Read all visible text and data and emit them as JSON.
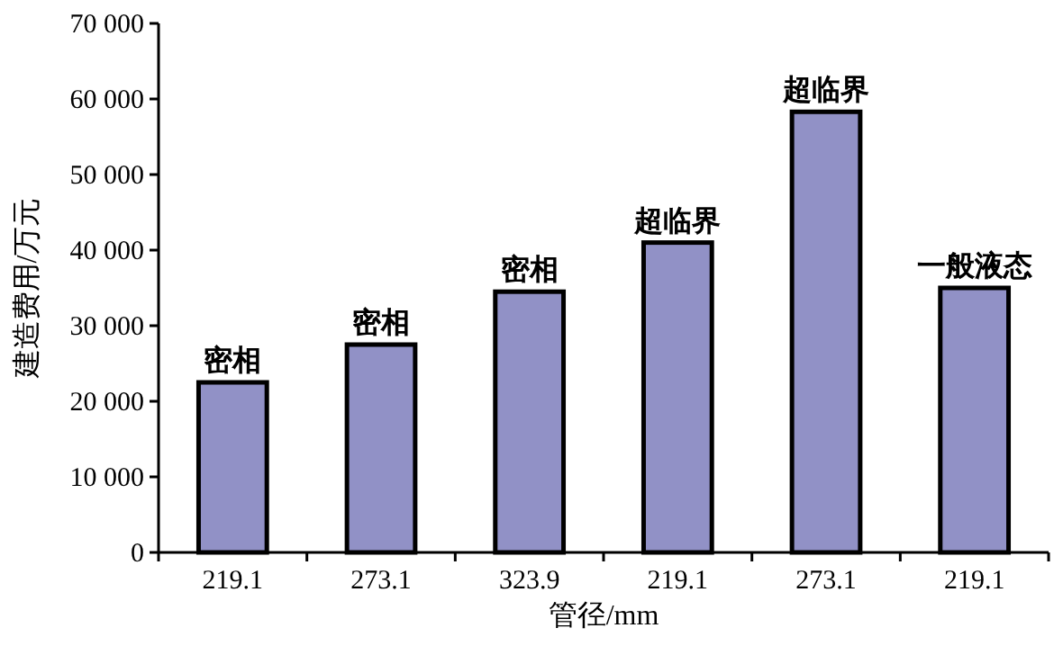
{
  "chart_data": {
    "type": "bar",
    "xlabel": "管径/mm",
    "ylabel": "建造费用/万元",
    "categories": [
      "219.1",
      "273.1",
      "323.9",
      "219.1",
      "273.1",
      "219.1"
    ],
    "values": [
      22500,
      27500,
      34500,
      41000,
      58300,
      35000
    ],
    "color": "#9191c6",
    "ylim": [
      0,
      70000
    ],
    "yticks": [
      0,
      {
        "value": 10000,
        "label": "10 000"
      },
      {
        "value": 20000,
        "label": "20 000"
      },
      {
        "value": 30000,
        "label": "30 000"
      },
      {
        "value": 40000,
        "label": "40 000"
      },
      {
        "value": 50000,
        "label": "50 000"
      },
      {
        "value": 60000,
        "label": "60 000"
      },
      {
        "value": 70000,
        "label": "70 000"
      }
    ],
    "value_labels": [
      "密相",
      "密相",
      "密相",
      "超临界",
      "超临界",
      "一般液态"
    ],
    "grid": false
  }
}
